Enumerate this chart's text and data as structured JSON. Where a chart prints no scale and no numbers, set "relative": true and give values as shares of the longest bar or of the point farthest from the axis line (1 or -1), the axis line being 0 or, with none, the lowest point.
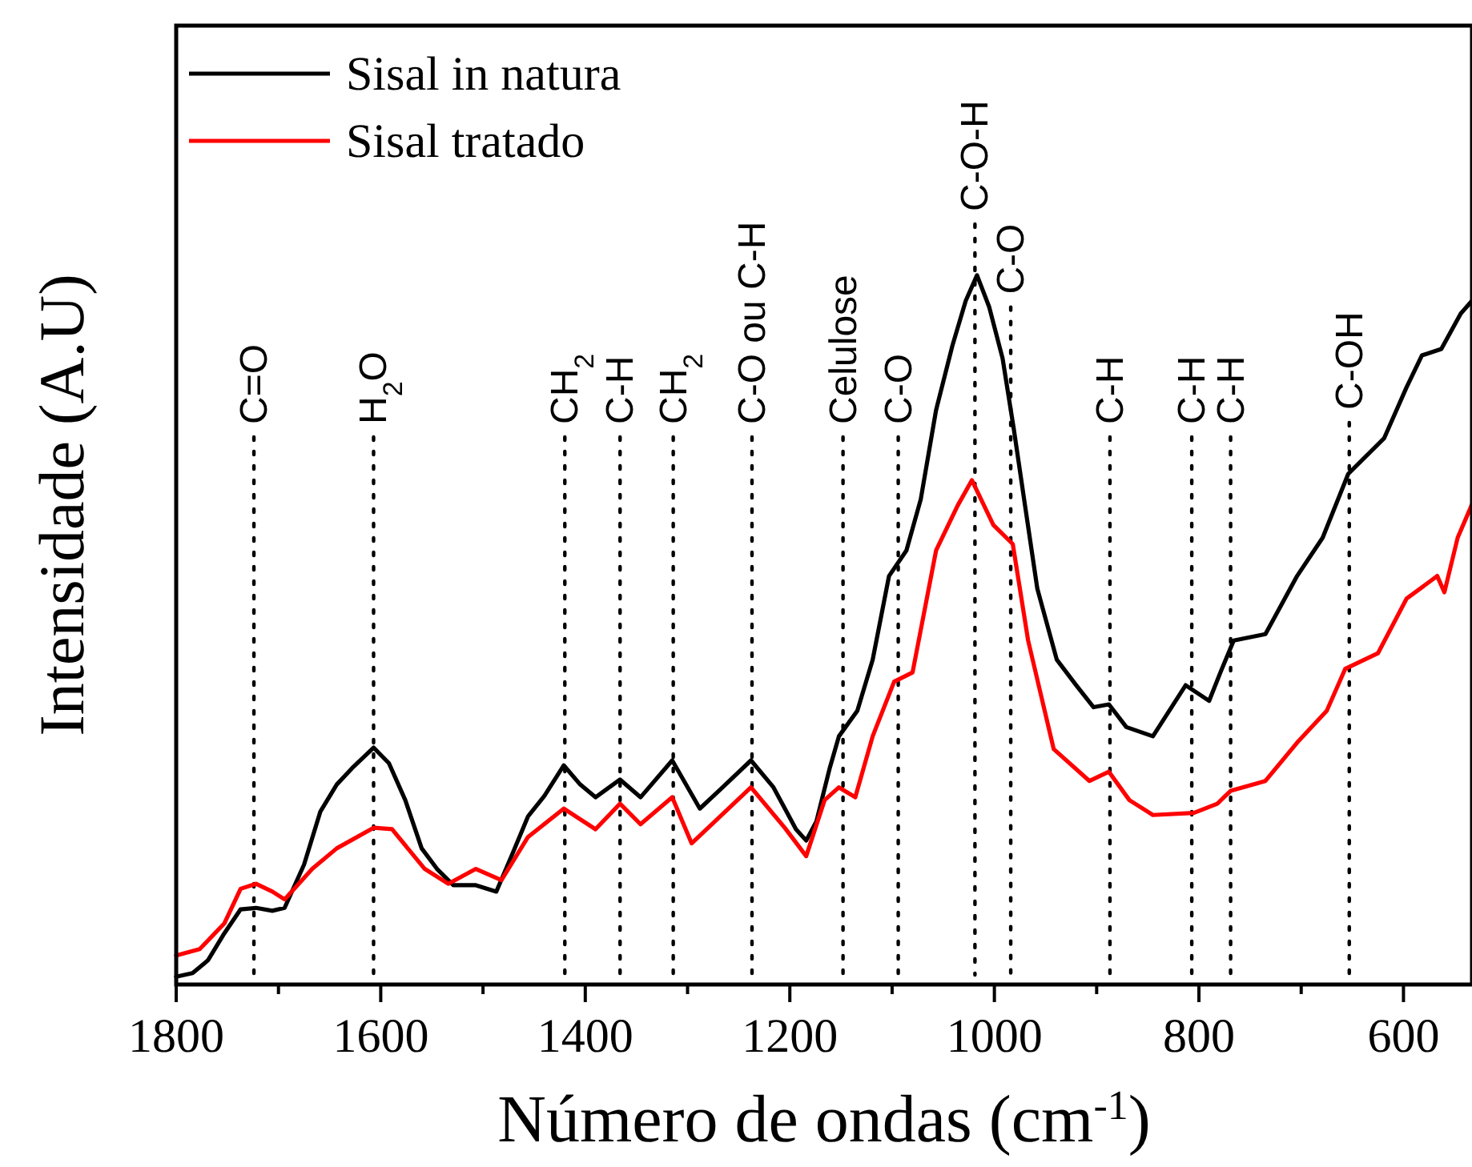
{
  "chart_data": {
    "type": "line",
    "relative": true,
    "xlabel": "Número de ondas (cm$^{-1}$)",
    "ylabel": "Intensidade (A.U)",
    "xlim": [
      1800,
      533
    ],
    "xticks": [
      1800,
      {
        "value": 1700,
        "label": null
      },
      1600,
      {
        "value": 1500,
        "label": null
      },
      1400,
      {
        "value": 1300,
        "label": null
      },
      1200,
      {
        "value": 1100,
        "label": null
      },
      1000,
      {
        "value": 900,
        "label": null
      },
      800,
      {
        "value": 700,
        "label": null
      },
      600
    ],
    "legend": "top left",
    "line_style": "solid",
    "marker": "none",
    "series": [
      {
        "name": "Sisal in natura",
        "color": "#000000",
        "x": [
          1800,
          1784,
          1769,
          1753,
          1737,
          1722,
          1706,
          1694,
          1675,
          1659,
          1643,
          1628,
          1607,
          1592,
          1576,
          1560,
          1545,
          1529,
          1507,
          1487,
          1471,
          1456,
          1440,
          1421,
          1405,
          1390,
          1366,
          1346,
          1315,
          1288,
          1268,
          1238,
          1216,
          1194,
          1184,
          1174,
          1161,
          1152,
          1134,
          1119,
          1103,
          1086,
          1072,
          1057,
          1041,
          1028,
          1017,
          1005,
          992,
          981,
          970,
          958,
          939,
          920,
          903,
          888,
          871,
          845,
          813,
          790,
          779,
          766,
          735,
          704,
          679,
          654,
          619,
          597,
          582,
          563,
          544,
          533
        ],
        "values": [
          0.011,
          0.016,
          0.034,
          0.072,
          0.106,
          0.108,
          0.104,
          0.108,
          0.169,
          0.244,
          0.282,
          0.305,
          0.334,
          0.312,
          0.26,
          0.192,
          0.163,
          0.14,
          0.14,
          0.131,
          0.185,
          0.237,
          0.266,
          0.309,
          0.282,
          0.264,
          0.289,
          0.264,
          0.316,
          0.248,
          0.275,
          0.316,
          0.278,
          0.219,
          0.203,
          0.23,
          0.305,
          0.35,
          0.386,
          0.458,
          0.576,
          0.612,
          0.684,
          0.81,
          0.901,
          0.964,
          1,
          0.955,
          0.883,
          0.783,
          0.675,
          0.558,
          0.458,
          0.422,
          0.391,
          0.395,
          0.363,
          0.35,
          0.422,
          0.4,
          0.44,
          0.485,
          0.494,
          0.576,
          0.63,
          0.72,
          0.77,
          0.842,
          0.887,
          0.896,
          0.946,
          0.964
        ]
      },
      {
        "name": "Sisal tratado",
        "color": "#ff0000",
        "x": [
          1800,
          1777,
          1753,
          1737,
          1722,
          1706,
          1694,
          1667,
          1643,
          1607,
          1589,
          1557,
          1534,
          1507,
          1482,
          1456,
          1421,
          1390,
          1366,
          1346,
          1315,
          1296,
          1238,
          1205,
          1184,
          1166,
          1152,
          1136,
          1119,
          1098,
          1080,
          1057,
          1036,
          1022,
          1001,
          982,
          967,
          942,
          907,
          888,
          868,
          845,
          805,
          782,
          769,
          735,
          704,
          675,
          657,
          625,
          597,
          567,
          560,
          547,
          533
        ],
        "values": [
          0.041,
          0.05,
          0.086,
          0.135,
          0.142,
          0.131,
          0.12,
          0.163,
          0.192,
          0.221,
          0.219,
          0.163,
          0.142,
          0.163,
          0.147,
          0.208,
          0.248,
          0.219,
          0.255,
          0.226,
          0.264,
          0.199,
          0.278,
          0.221,
          0.181,
          0.26,
          0.278,
          0.264,
          0.35,
          0.427,
          0.44,
          0.612,
          0.675,
          0.711,
          0.648,
          0.621,
          0.485,
          0.332,
          0.287,
          0.3,
          0.26,
          0.239,
          0.242,
          0.255,
          0.273,
          0.287,
          0.341,
          0.386,
          0.445,
          0.467,
          0.544,
          0.576,
          0.553,
          0.63,
          0.677
        ]
      }
    ],
    "ref_lines": [
      {
        "axis": "x",
        "value": 1724,
        "label": "C=O",
        "line_style": "dotted"
      },
      {
        "axis": "x",
        "value": 1607,
        "label": "H$_{2}$O",
        "line_style": "dotted"
      },
      {
        "axis": "x",
        "value": 1420,
        "label": "CH$_{2}$",
        "line_style": "dotted"
      },
      {
        "axis": "x",
        "value": 1366,
        "label": "C-H",
        "line_style": "dotted"
      },
      {
        "axis": "x",
        "value": 1314,
        "label": "CH$_{2}$",
        "line_style": "dotted"
      },
      {
        "axis": "x",
        "value": 1237,
        "label": "C-O ou C-H",
        "line_style": "dotted"
      },
      {
        "axis": "x",
        "value": 1148,
        "label": "Celulose",
        "line_style": "dotted"
      },
      {
        "axis": "x",
        "value": 1094,
        "label": "C-O",
        "line_style": "dotted"
      },
      {
        "axis": "x",
        "value": 1019,
        "label": "C-O-H",
        "line_style": "dotted"
      },
      {
        "axis": "x",
        "value": 984,
        "label": "C-O",
        "line_style": "dotted"
      },
      {
        "axis": "x",
        "value": 887,
        "label": "C-H",
        "line_style": "dotted"
      },
      {
        "axis": "x",
        "value": 807,
        "label": "C-H",
        "line_style": "dotted"
      },
      {
        "axis": "x",
        "value": 769,
        "label": "C-H",
        "line_style": "dotted"
      },
      {
        "axis": "x",
        "value": 653,
        "label": "C-OH",
        "line_style": "dotted"
      }
    ]
  }
}
